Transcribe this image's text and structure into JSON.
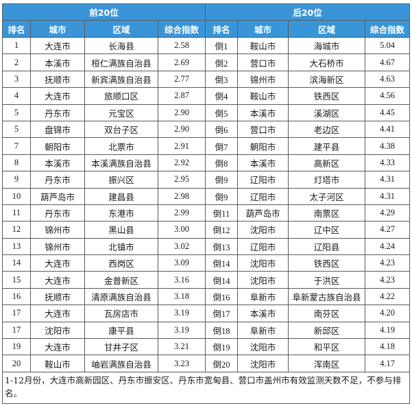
{
  "title_left": "前20位",
  "title_right": "后20位",
  "headers_left": [
    "排名",
    "城市",
    "区域",
    "综合指数"
  ],
  "headers_right": [
    "排名",
    "城市",
    "区域",
    "综合指数"
  ],
  "rows": [
    {
      "left": [
        "1",
        "大连市",
        "长海县",
        "2.58"
      ],
      "right": [
        "倒1",
        "鞍山市",
        "海城市",
        "5.04"
      ]
    },
    {
      "left": [
        "2",
        "本溪市",
        "桓仁满族自治县",
        "2.69"
      ],
      "right": [
        "倒2",
        "营口市",
        "大石桥市",
        "4.67"
      ]
    },
    {
      "left": [
        "3",
        "抚顺市",
        "新宾满族自治县",
        "2.77"
      ],
      "right": [
        "倒3",
        "锦州市",
        "滨海新区",
        "4.63"
      ]
    },
    {
      "left": [
        "4",
        "大连市",
        "旅顺口区",
        "2.87"
      ],
      "right": [
        "倒4",
        "鞍山市",
        "铁西区",
        "4.56"
      ]
    },
    {
      "left": [
        "5",
        "丹东市",
        "元宝区",
        "2.90"
      ],
      "right": [
        "倒5",
        "本溪市",
        "溪湖区",
        "4.45"
      ]
    },
    {
      "left": [
        "5",
        "盘锦市",
        "双台子区",
        "2.90"
      ],
      "right": [
        "倒6",
        "营口市",
        "老边区",
        "4.41"
      ]
    },
    {
      "left": [
        "7",
        "朝阳市",
        "北票市",
        "2.91"
      ],
      "right": [
        "倒7",
        "朝阳市",
        "建平县",
        "4.38"
      ]
    },
    {
      "left": [
        "8",
        "本溪市",
        "本溪满族自治县",
        "2.92"
      ],
      "right": [
        "倒8",
        "本溪市",
        "高新区",
        "4.33"
      ]
    },
    {
      "left": [
        "9",
        "丹东市",
        "振兴区",
        "2.95"
      ],
      "right": [
        "倒9",
        "辽阳市",
        "灯塔市",
        "4.31"
      ]
    },
    {
      "left": [
        "10",
        "葫芦岛市",
        "建昌县",
        "2.98"
      ],
      "right": [
        "倒9",
        "辽阳市",
        "太子河区",
        "4.31"
      ]
    },
    {
      "left": [
        "11",
        "丹东市",
        "东港市",
        "2.99"
      ],
      "right": [
        "倒11",
        "葫芦岛市",
        "南票区",
        "4.29"
      ]
    },
    {
      "left": [
        "12",
        "锦州市",
        "黑山县",
        "3.00"
      ],
      "right": [
        "倒12",
        "沈阳市",
        "辽中区",
        "4.27"
      ]
    },
    {
      "left": [
        "13",
        "锦州市",
        "北镇市",
        "3.02"
      ],
      "right": [
        "倒13",
        "辽阳市",
        "辽阳县",
        "4.24"
      ]
    },
    {
      "left": [
        "14",
        "大连市",
        "西岗区",
        "3.09"
      ],
      "right": [
        "倒14",
        "沈阳市",
        "铁西区",
        "4.23"
      ]
    },
    {
      "left": [
        "15",
        "大连市",
        "金普新区",
        "3.16"
      ],
      "right": [
        "倒14",
        "沈阳市",
        "于洪区",
        "4.23"
      ]
    },
    {
      "left": [
        "16",
        "抚顺市",
        "清原满族自治县",
        "3.18"
      ],
      "right": [
        "倒16",
        "阜新市",
        "阜新蒙古族自治县",
        "4.22"
      ]
    },
    {
      "left": [
        "17",
        "大连市",
        "瓦房店市",
        "3.19"
      ],
      "right": [
        "倒17",
        "本溪市",
        "南芬区",
        "4.20"
      ]
    },
    {
      "left": [
        "17",
        "沈阳市",
        "康平县",
        "3.19"
      ],
      "right": [
        "倒18",
        "阜新市",
        "新邱区",
        "4.19"
      ]
    },
    {
      "left": [
        "19",
        "大连市",
        "甘井子区",
        "3.21"
      ],
      "right": [
        "倒19",
        "沈阳市",
        "和平区",
        "4.18"
      ]
    },
    {
      "left": [
        "20",
        "鞍山市",
        "岫岩满族自治县",
        "3.23"
      ],
      "right": [
        "倒20",
        "沈阳市",
        "浑南区",
        "4.17"
      ]
    }
  ],
  "footnote": "1-12月份，大连市高新园区、丹东市振安区、丹东市宽甸县、营口市盖州市有效监测天数不足，不参与排名。",
  "colors": {
    "header_bg": "#3a95d8",
    "header_text": "#ffffff",
    "border": "#5a5a5a"
  }
}
